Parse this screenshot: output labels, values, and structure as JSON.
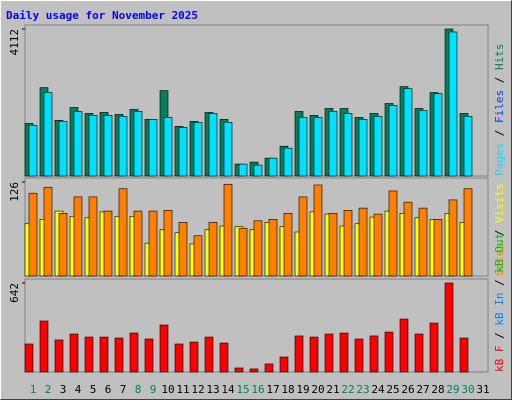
{
  "title": "Daily usage for November 2025",
  "legend_separator": " / ",
  "chart_data": [
    {
      "type": "bar",
      "ylim": [
        0,
        4112
      ],
      "yticks": [
        4112
      ],
      "series": [
        {
          "name": "Pages",
          "color": "#00e0ff",
          "values": [
            1417,
            2334,
            1528,
            1806,
            1695,
            1695,
            1667,
            1806,
            1584,
            1639,
            1361,
            1500,
            1750,
            1500,
            333,
            305,
            500,
            778,
            1639,
            1639,
            1806,
            1750,
            1584,
            1667,
            1972,
            2445,
            1834,
            2306,
            4029,
            1667,
            null
          ]
        },
        {
          "name": "Files",
          "color": "#0040ff"
        },
        {
          "name": "Hits",
          "color": "#00805c",
          "values": [
            1472,
            2473,
            1556,
            1917,
            1750,
            1778,
            1723,
            1862,
            1584,
            2390,
            1389,
            1528,
            1778,
            1584,
            333,
            389,
            500,
            834,
            1806,
            1695,
            1889,
            1889,
            1639,
            1750,
            2029,
            2501,
            1889,
            2334,
            4112,
            1750,
            null
          ]
        }
      ]
    },
    {
      "type": "bar",
      "ylim": [
        0,
        126
      ],
      "yticks": [
        126
      ],
      "series": [
        {
          "name": "Sites",
          "color": "#ff8000",
          "values": [
            111,
            119,
            84,
            106,
            106,
            87,
            117,
            87,
            87,
            88,
            72,
            54,
            72,
            123,
            64,
            74,
            76,
            84,
            106,
            122,
            84,
            88,
            91,
            83,
            114,
            99,
            91,
            76,
            102,
            117,
            null
          ]
        },
        {
          "name": "Visits",
          "color": "#ffff00",
          "values": [
            70,
            76,
            87,
            80,
            78,
            86,
            80,
            80,
            44,
            62,
            58,
            43,
            62,
            67,
            66,
            62,
            72,
            66,
            59,
            86,
            83,
            67,
            70,
            79,
            87,
            84,
            78,
            76,
            84,
            72,
            null
          ]
        }
      ]
    },
    {
      "type": "bar",
      "ylim": [
        0,
        642
      ],
      "yticks": [
        642
      ],
      "series": [
        {
          "name": "kB F",
          "color": "#ff0000",
          "values": [
            202,
            368,
            231,
            274,
            252,
            252,
            245,
            281,
            238,
            339,
            202,
            216,
            252,
            209,
            29,
            22,
            58,
            108,
            260,
            252,
            274,
            281,
            238,
            260,
            288,
            382,
            274,
            353,
            642,
            245,
            null
          ]
        },
        {
          "name": "kB In",
          "color": "#0080ff"
        },
        {
          "name": "kB Out",
          "color": "#00c000"
        }
      ],
      "categories": [
        "1",
        "2",
        "3",
        "4",
        "5",
        "6",
        "7",
        "8",
        "9",
        "10",
        "11",
        "12",
        "13",
        "14",
        "15",
        "16",
        "17",
        "18",
        "19",
        "20",
        "21",
        "22",
        "23",
        "24",
        "25",
        "26",
        "27",
        "28",
        "29",
        "30",
        "31"
      ],
      "category_colors": [
        "#00805c",
        "#00805c",
        "#000000",
        "#000000",
        "#000000",
        "#000000",
        "#000000",
        "#00805c",
        "#00805c",
        "#000000",
        "#000000",
        "#000000",
        "#000000",
        "#000000",
        "#00805c",
        "#00805c",
        "#000000",
        "#000000",
        "#000000",
        "#000000",
        "#000000",
        "#00805c",
        "#00805c",
        "#000000",
        "#000000",
        "#000000",
        "#000000",
        "#000000",
        "#00805c",
        "#00805c",
        "#000000"
      ]
    }
  ]
}
